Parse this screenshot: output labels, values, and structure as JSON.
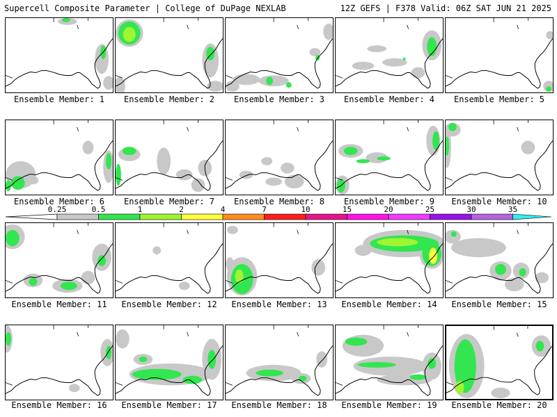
{
  "header": {
    "left": "Supercell Composite Parameter | College of DuPage NEXLAB",
    "right": "12Z GEFS | F378 Valid: 06Z SAT JUN 21 2025"
  },
  "member_label_prefix": "Ensemble Member: ",
  "members": [
    {
      "id": 1,
      "label": "Ensemble Member: 1"
    },
    {
      "id": 2,
      "label": "Ensemble Member: 2"
    },
    {
      "id": 3,
      "label": "Ensemble Member: 3"
    },
    {
      "id": 4,
      "label": "Ensemble Member: 4"
    },
    {
      "id": 5,
      "label": "Ensemble Member: 5"
    },
    {
      "id": 6,
      "label": "Ensemble Member: 6"
    },
    {
      "id": 7,
      "label": "Ensemble Member: 7"
    },
    {
      "id": 8,
      "label": "Ensemble Member: 8"
    },
    {
      "id": 9,
      "label": "Ensemble Member: 9"
    },
    {
      "id": 10,
      "label": "Ensemble Member: 10"
    },
    {
      "id": 11,
      "label": "Ensemble Member: 11"
    },
    {
      "id": 12,
      "label": "Ensemble Member: 12"
    },
    {
      "id": 13,
      "label": "Ensemble Member: 13"
    },
    {
      "id": 14,
      "label": "Ensemble Member: 14"
    },
    {
      "id": 15,
      "label": "Ensemble Member: 15"
    },
    {
      "id": 16,
      "label": "Ensemble Member: 16"
    },
    {
      "id": 17,
      "label": "Ensemble Member: 17"
    },
    {
      "id": 18,
      "label": "Ensemble Member: 18"
    },
    {
      "id": 19,
      "label": "Ensemble Member: 19"
    },
    {
      "id": 20,
      "label": "Ensemble Member: 20"
    }
  ],
  "selected_member": 20,
  "colorbar": {
    "levels": [
      "0.25",
      "0.5",
      "1",
      "2",
      "4",
      "7",
      "10",
      "15",
      "20",
      "25",
      "30",
      "35"
    ],
    "colors": [
      "#c8c8c8",
      "#32e650",
      "#a0f532",
      "#ffff3c",
      "#ff8c1e",
      "#ff1e1e",
      "#e6148c",
      "#ff14e6",
      "#f03cff",
      "#9614e6",
      "#b464dc",
      "#32f0f0"
    ]
  },
  "fill_colors": {
    "gray": "#c8c8c8",
    "green": "#32e650",
    "lime": "#a0f532",
    "yellow": "#ffff3c"
  }
}
